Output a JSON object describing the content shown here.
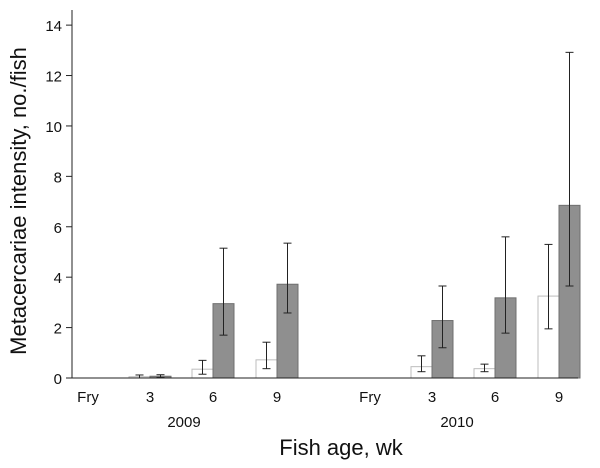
{
  "chart_data": {
    "type": "bar",
    "title": "",
    "xlabel": "Fish age, wk",
    "ylabel": "Metacercariae intensity, no./fish",
    "ylim": [
      0,
      14.6
    ],
    "yticks": [
      0,
      2,
      4,
      6,
      8,
      10,
      12,
      14
    ],
    "grid": false,
    "legend": "none",
    "groups": [
      {
        "label": "2009",
        "categories": [
          "Fry",
          "3",
          "6",
          "9"
        ]
      },
      {
        "label": "2010",
        "categories": [
          "Fry",
          "3",
          "6",
          "9"
        ]
      }
    ],
    "series": [
      {
        "style": "white",
        "fill": "#ffffff",
        "stroke": "#bdbdbd",
        "values": [
          0,
          0.05,
          0.35,
          0.72,
          0,
          0.45,
          0.37,
          3.25
        ],
        "error_low": [
          0,
          0.0,
          0.15,
          0.37,
          0,
          0.25,
          0.25,
          1.95
        ],
        "error_high": [
          0,
          0.12,
          0.7,
          1.42,
          0,
          0.88,
          0.55,
          5.3
        ]
      },
      {
        "style": "gray",
        "fill": "#8f8f8f",
        "stroke": "#6f6f6f",
        "values": [
          0,
          0.07,
          2.95,
          3.72,
          0,
          2.28,
          3.18,
          6.85
        ],
        "error_low": [
          0,
          0.02,
          1.7,
          2.58,
          0,
          1.2,
          1.78,
          3.65
        ],
        "error_high": [
          0,
          0.13,
          5.15,
          5.35,
          0,
          3.65,
          5.6,
          12.92
        ]
      }
    ]
  }
}
